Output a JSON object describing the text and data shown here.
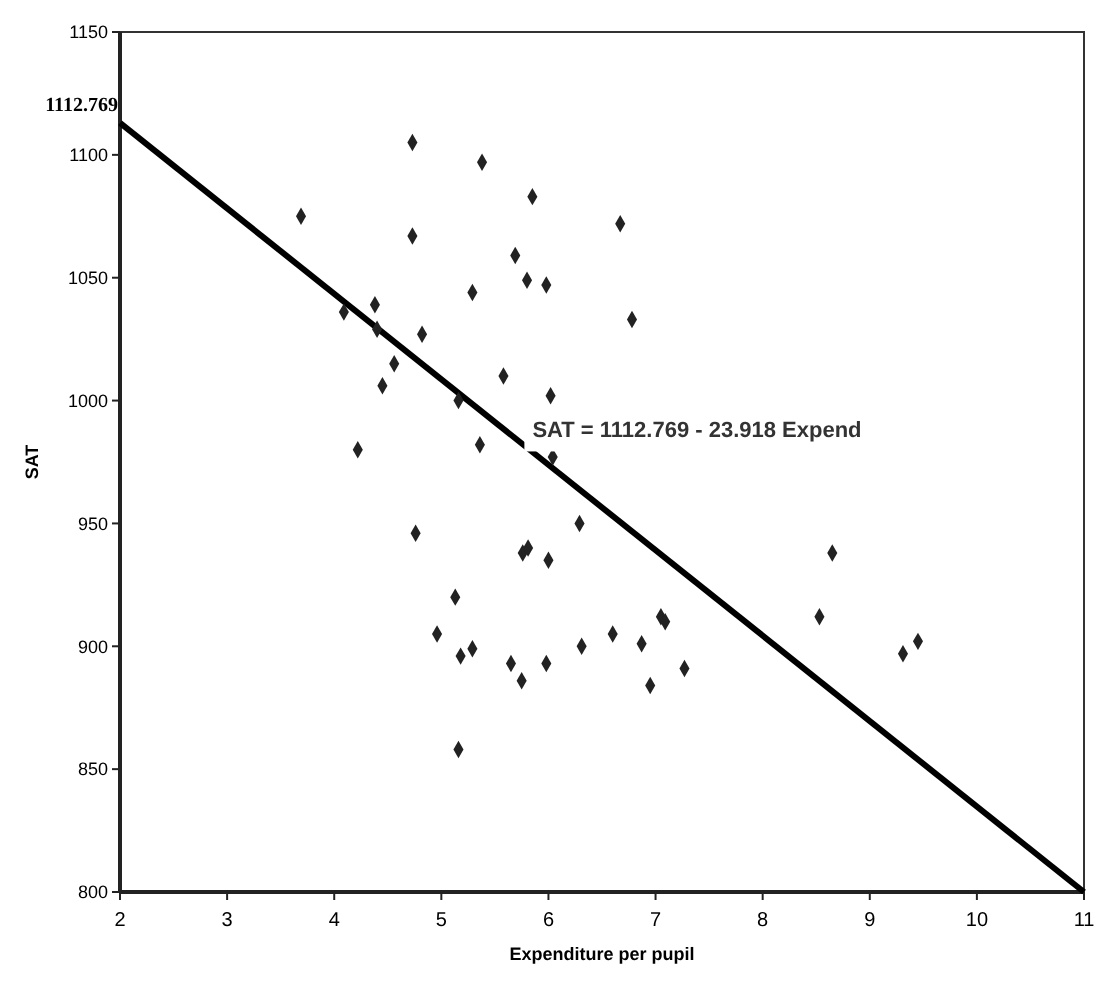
{
  "chart_data": {
    "type": "scatter",
    "xlabel": "Expenditure per pupil",
    "ylabel": "SAT",
    "xlim": [
      2,
      11
    ],
    "ylim": [
      800,
      1150
    ],
    "xticks": [
      2,
      3,
      4,
      5,
      6,
      7,
      8,
      9,
      10,
      11
    ],
    "yticks": [
      800,
      850,
      900,
      950,
      1000,
      1050,
      1100,
      1150
    ],
    "grid": false,
    "series": [
      {
        "marker": "diamond",
        "color": "#222222",
        "x": [
          3.69,
          4.73,
          5.38,
          5.85,
          4.73,
          5.69,
          5.29,
          5.8,
          5.98,
          4.09,
          4.38,
          4.4,
          4.82,
          4.56,
          4.45,
          5.58,
          5.16,
          6.02,
          4.22,
          5.36,
          6.04,
          6.67,
          6.78,
          6.29,
          4.76,
          5.76,
          5.81,
          6.0,
          5.13,
          4.96,
          5.18,
          5.29,
          5.65,
          5.75,
          5.98,
          6.31,
          6.6,
          6.87,
          6.95,
          7.05,
          7.09,
          7.27,
          5.16,
          8.65,
          8.53,
          9.31,
          9.45
        ],
        "values": [
          1075,
          1105,
          1097,
          1083,
          1067,
          1059,
          1044,
          1049,
          1047,
          1036,
          1039,
          1029,
          1027,
          1015,
          1006,
          1010,
          1000,
          1002,
          980,
          982,
          977,
          1072,
          1033,
          950,
          946,
          938,
          940,
          935,
          920,
          905,
          896,
          899,
          893,
          886,
          893,
          900,
          905,
          901,
          884,
          912,
          910,
          891,
          858,
          938,
          912,
          897,
          902
        ]
      },
      {
        "type": "line",
        "color": "#000000",
        "line_style": "solid",
        "x": [
          2,
          11
        ],
        "values": [
          1113,
          800
        ]
      }
    ],
    "annotations": [
      {
        "text": "1112.769",
        "x": 2,
        "y": 1112.769
      },
      "SAT = 1112.769 - 23.918 Expend"
    ]
  }
}
